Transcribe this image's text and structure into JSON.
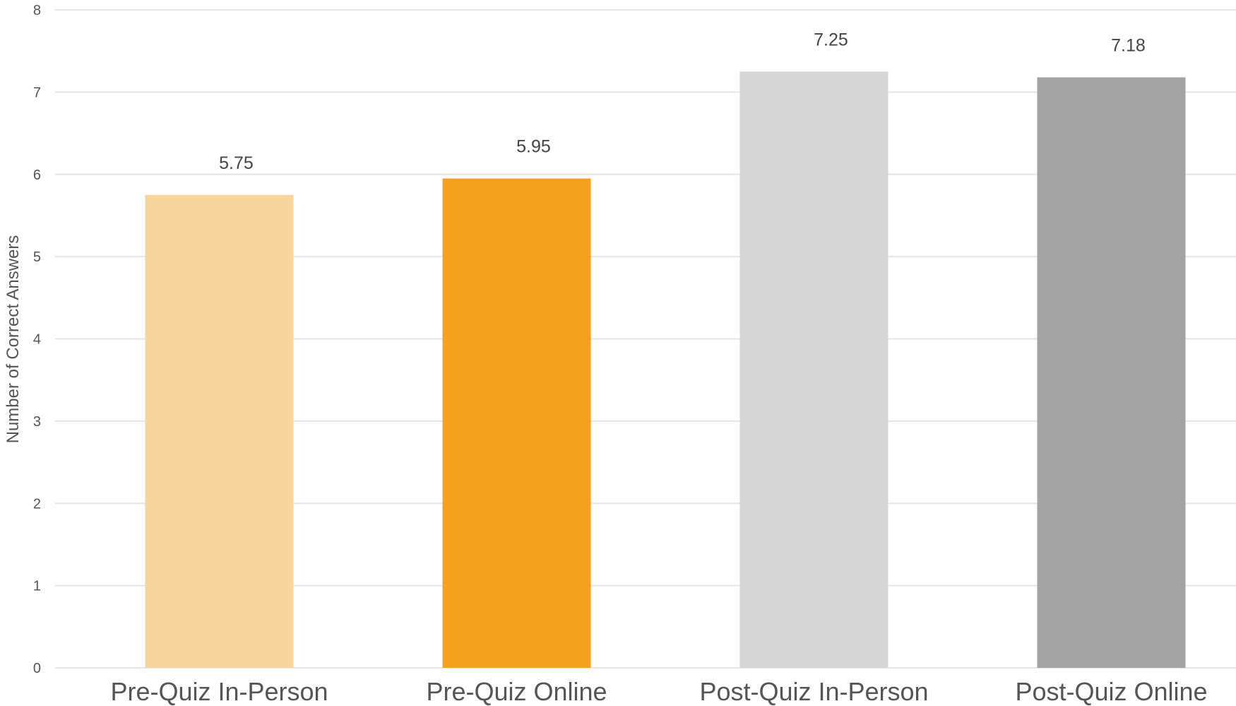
{
  "chart_data": {
    "type": "bar",
    "title": "",
    "xlabel": "",
    "ylabel": "Number of Correct Answers",
    "categories": [
      "Pre-Quiz In-Person",
      "Pre-Quiz Online",
      "Post-Quiz In-Person",
      "Post-Quiz Online"
    ],
    "values": [
      5.75,
      5.95,
      7.25,
      7.18
    ],
    "data_labels": [
      "5.75",
      "5.95",
      "7.25",
      "7.18"
    ],
    "colors": [
      "#f8d59c",
      "#f4a11f",
      "#d7d7d7",
      "#a3a3a3"
    ],
    "ylim": [
      0,
      8
    ],
    "yticks": [
      "0",
      "1",
      "2",
      "3",
      "4",
      "5",
      "6",
      "7",
      "8"
    ],
    "grid": true,
    "legend": "none"
  }
}
